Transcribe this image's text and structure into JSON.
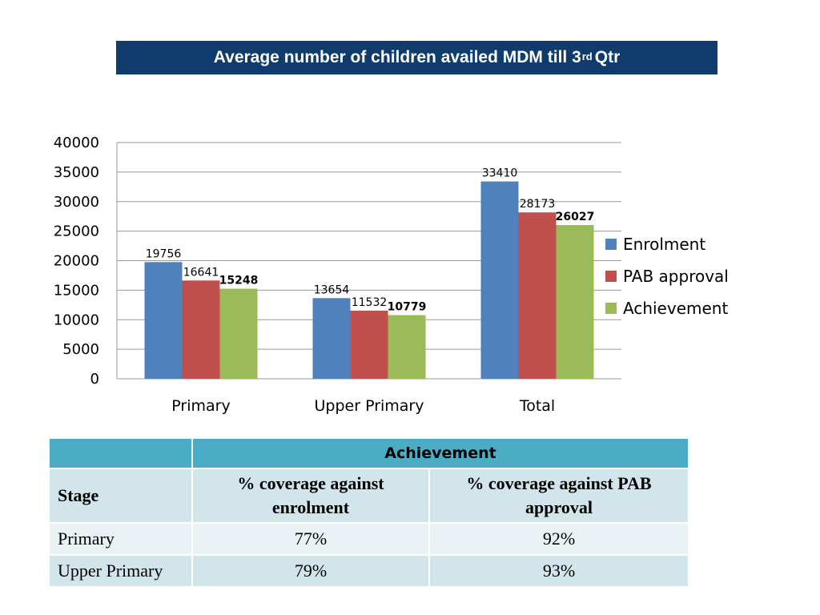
{
  "header": {
    "title_main": "Average number of children availed MDM till 3",
    "title_sup": "rd",
    "title_end": "Qtr"
  },
  "chart_data": {
    "type": "bar",
    "title": "Average number of children availed MDM till 3rd Qtr",
    "categories": [
      "Primary",
      "Upper Primary",
      "Total"
    ],
    "series": [
      {
        "name": "Enrolment",
        "values": [
          19756,
          13654,
          33410
        ],
        "color": "#4f81bd",
        "label_bold": false
      },
      {
        "name": "PAB approval",
        "values": [
          16641,
          11532,
          28173
        ],
        "color": "#c0504d",
        "label_bold": false
      },
      {
        "name": "Achievement",
        "values": [
          15248,
          10779,
          26027
        ],
        "color": "#9bbb59",
        "label_bold": true
      }
    ],
    "ylim": [
      0,
      40000
    ],
    "yticks": [
      0,
      5000,
      10000,
      15000,
      20000,
      25000,
      30000,
      35000,
      40000
    ],
    "xlabel": "",
    "ylabel": "",
    "grid": true,
    "legend": "right"
  },
  "table": {
    "achievement_header": "Achievement",
    "stage_header": "Stage",
    "col1_header": "% coverage against enrolment",
    "col2_header": "% coverage against PAB approval",
    "rows": [
      {
        "stage": "Primary",
        "vs_enrolment": "77%",
        "vs_pab": "92%"
      },
      {
        "stage": "Upper Primary",
        "vs_enrolment": "79%",
        "vs_pab": "93%"
      }
    ]
  }
}
